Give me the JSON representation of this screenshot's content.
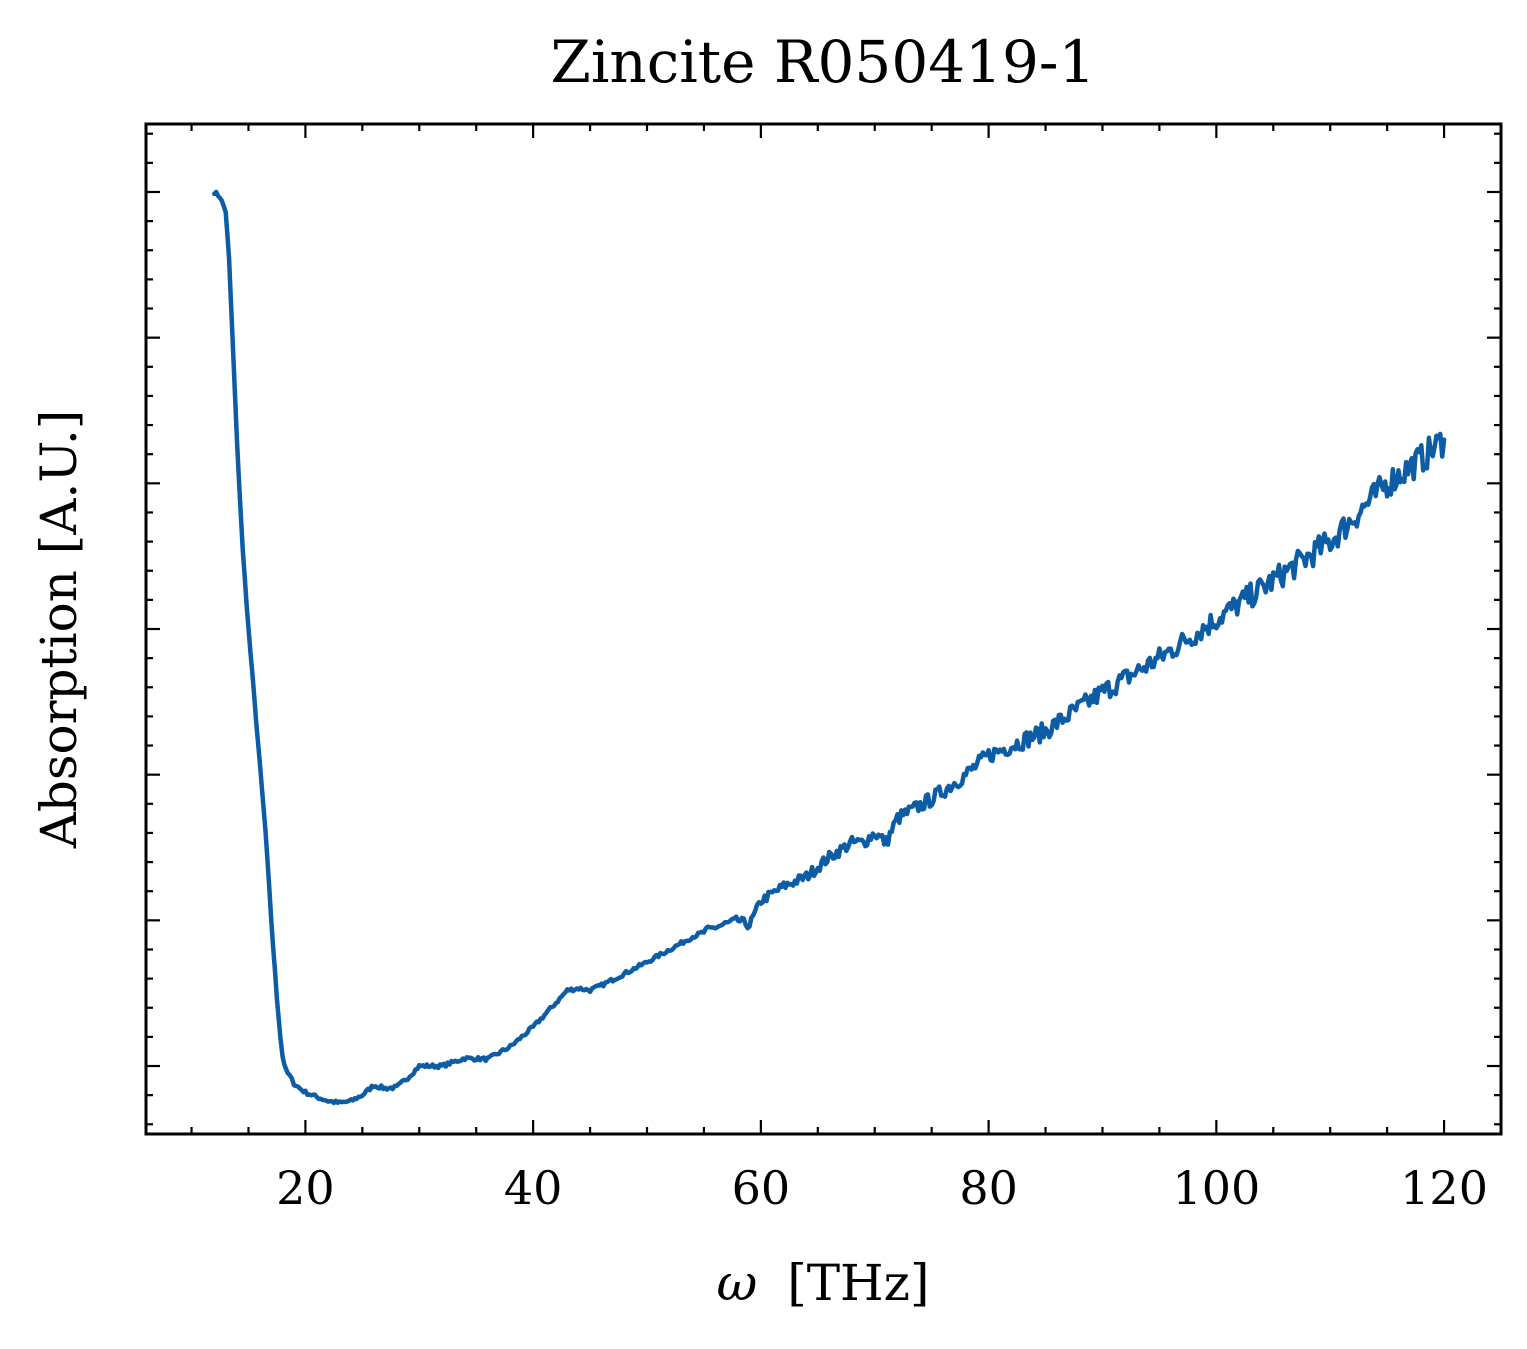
{
  "chart_data": {
    "type": "line",
    "title": "Zincite R050419-1",
    "xlabel_symbol": "ω",
    "xlabel_unit": "[THz]",
    "ylabel": "Absorption [A.U.]",
    "xlim": [
      6,
      125
    ],
    "ylim": [
      0.03,
      1.07
    ],
    "x_ticks": [
      20,
      40,
      60,
      80,
      100,
      120
    ],
    "x_tick_labels": [
      "20",
      "40",
      "60",
      "80",
      "100",
      "120"
    ],
    "y_ticks": [
      0.1,
      0.25,
      0.4,
      0.55,
      0.7,
      0.85,
      1.0
    ],
    "y_tick_labels_visible": false,
    "grid": false,
    "legend": false,
    "series": [
      {
        "color": "#0c5da5",
        "noisy_from_x": 55,
        "x": [
          12.0,
          12.5,
          13.0,
          13.3,
          13.6,
          14.0,
          14.5,
          15.0,
          15.5,
          16.0,
          16.5,
          17.0,
          17.5,
          17.8,
          18.0,
          18.3,
          18.6,
          19.0,
          19.5,
          20.0,
          21.0,
          22.0,
          23.0,
          24.0,
          25.0,
          26.0,
          27.0,
          28.0,
          29.0,
          30.0,
          32.0,
          34.0,
          36.0,
          38.0,
          40.0,
          42.0,
          43.0,
          44.0,
          45.0,
          46.0,
          48.0,
          50.0,
          52.0,
          54.0,
          56.0,
          58.0,
          59.0,
          60.0,
          62.0,
          64.0,
          66.0,
          68.0,
          69.0,
          70.0,
          71.0,
          72.0,
          75.0,
          78.0,
          80.0,
          85.0,
          90.0,
          95.0,
          100.0,
          105.0,
          110.0,
          115.0,
          118.0,
          120.0
        ],
        "y": [
          1.0,
          0.995,
          0.98,
          0.93,
          0.85,
          0.74,
          0.63,
          0.55,
          0.48,
          0.41,
          0.34,
          0.25,
          0.17,
          0.13,
          0.11,
          0.095,
          0.09,
          0.082,
          0.077,
          0.073,
          0.068,
          0.064,
          0.062,
          0.064,
          0.07,
          0.08,
          0.077,
          0.078,
          0.088,
          0.1,
          0.1,
          0.108,
          0.107,
          0.12,
          0.14,
          0.165,
          0.178,
          0.18,
          0.178,
          0.183,
          0.195,
          0.207,
          0.22,
          0.233,
          0.243,
          0.25,
          0.245,
          0.27,
          0.285,
          0.295,
          0.315,
          0.33,
          0.33,
          0.34,
          0.33,
          0.355,
          0.375,
          0.4,
          0.42,
          0.445,
          0.485,
          0.52,
          0.56,
          0.6,
          0.64,
          0.7,
          0.725,
          0.745
        ]
      }
    ]
  }
}
